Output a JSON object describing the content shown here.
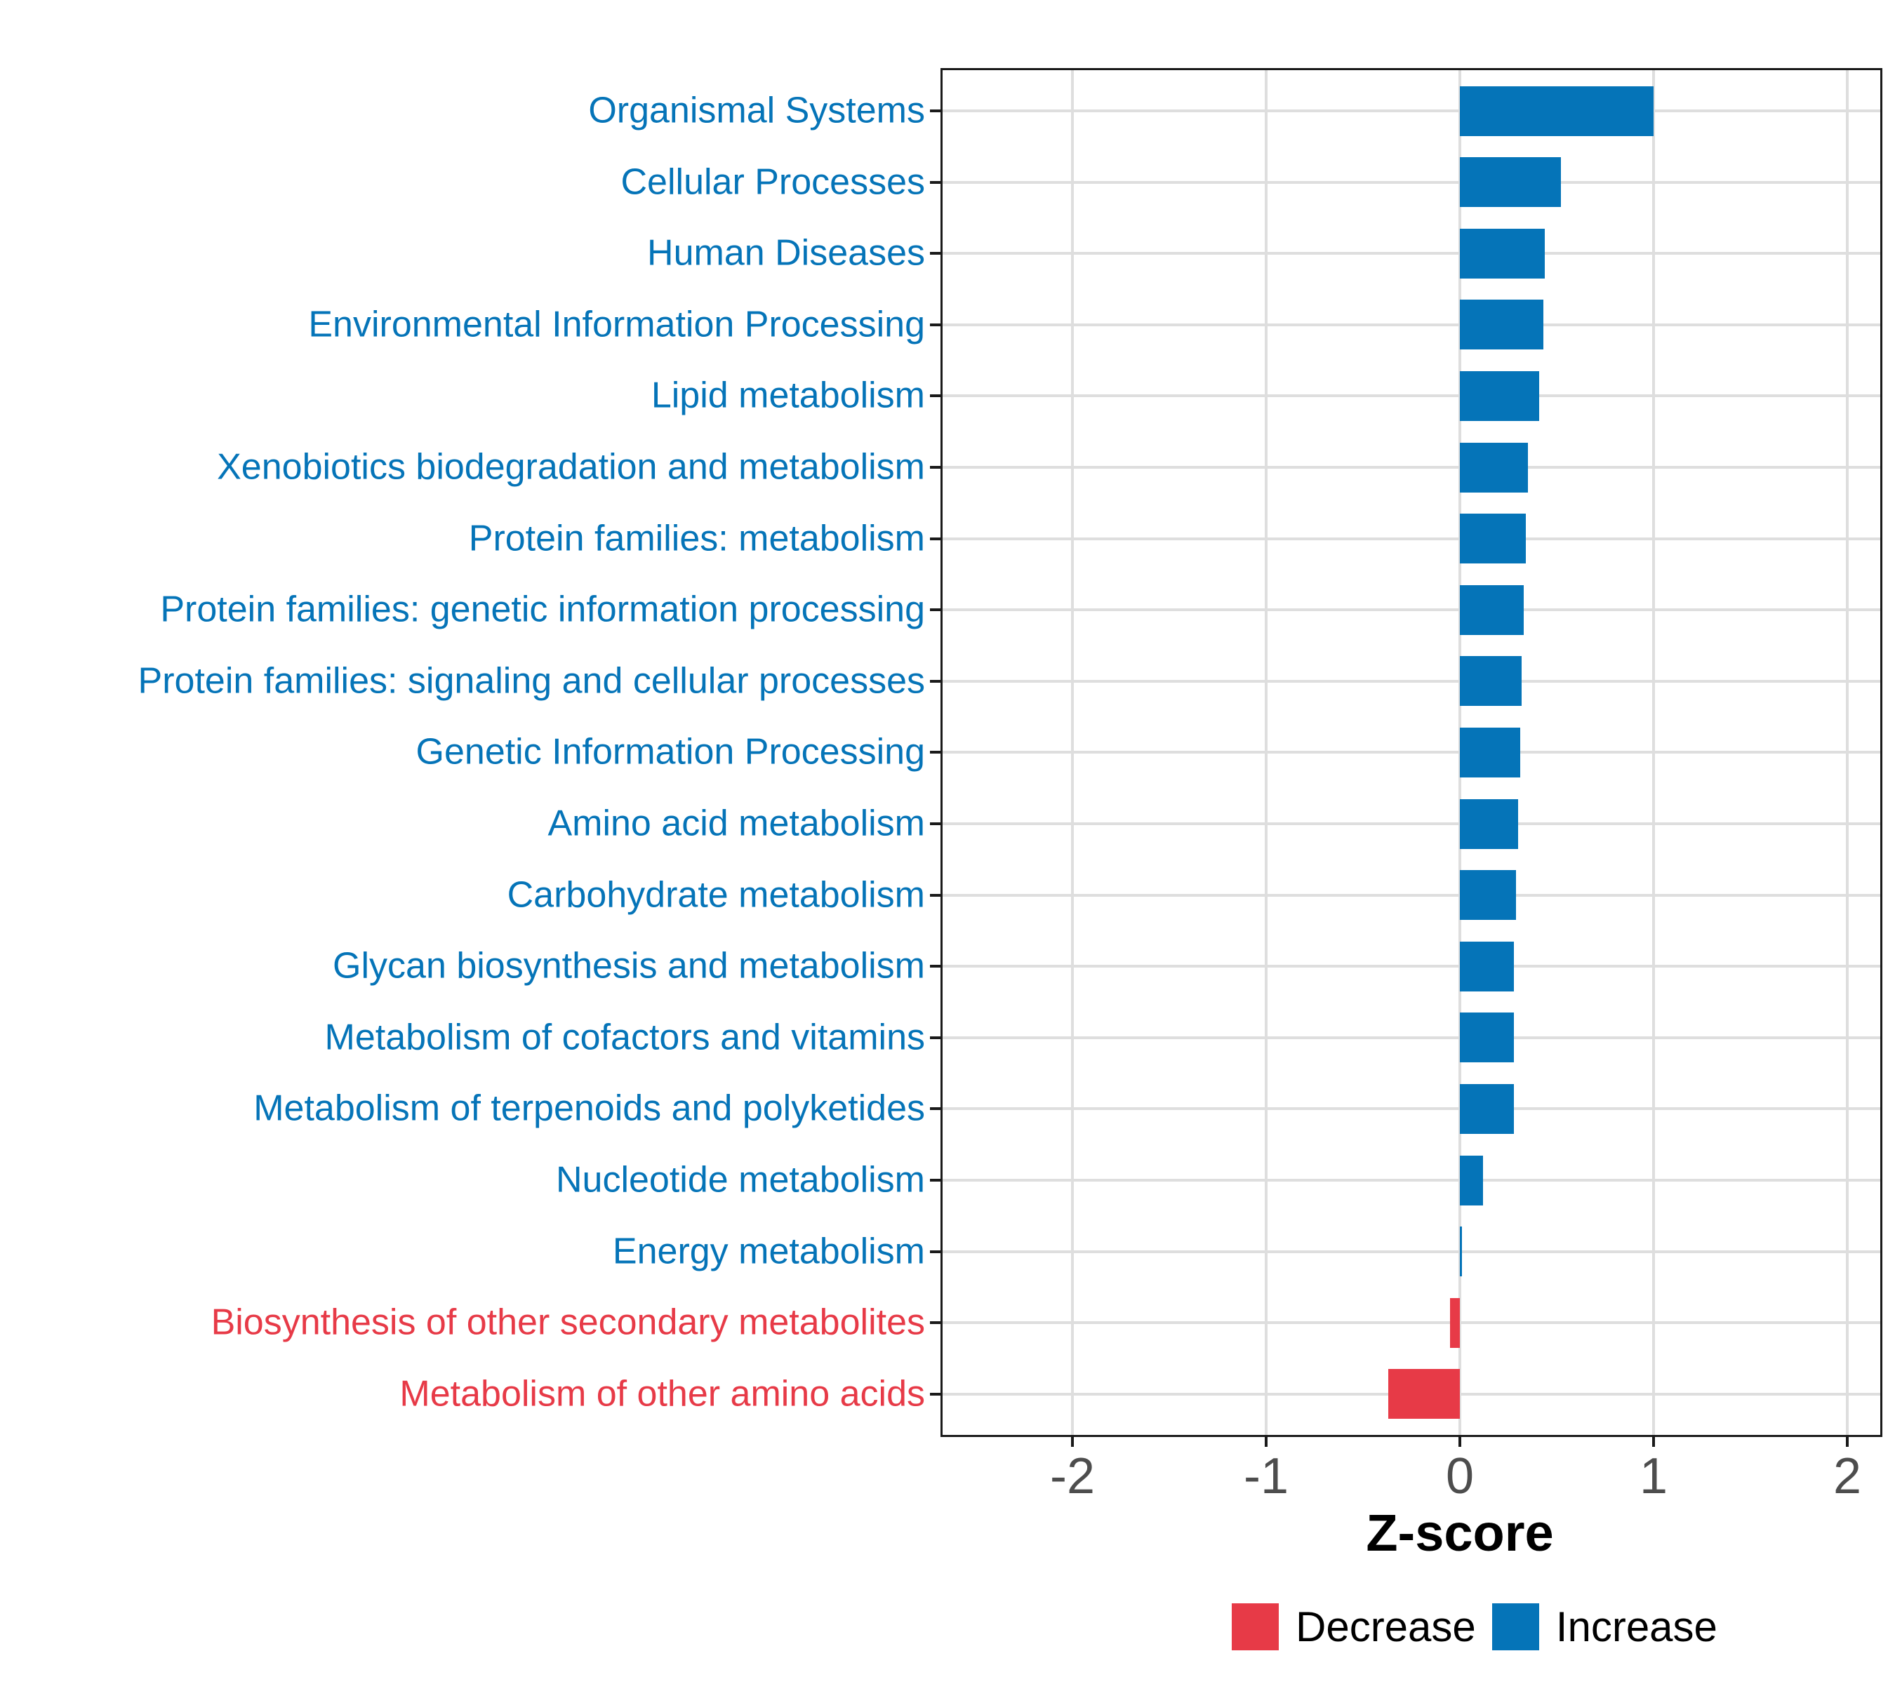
{
  "chart_data": {
    "type": "bar",
    "orientation": "horizontal",
    "title": "",
    "xlabel": "Z-score",
    "ylabel": "",
    "xlim": [
      -2.7,
      2.2
    ],
    "x_ticks": [
      -2,
      -1,
      0,
      1,
      2
    ],
    "x_tick_labels": [
      "-2",
      "-1",
      "0",
      "1",
      "2"
    ],
    "grid": true,
    "legend_position": "bottom",
    "categories": [
      "Organismal Systems",
      "Cellular Processes",
      "Human Diseases",
      "Environmental Information Processing",
      "Lipid metabolism",
      "Xenobiotics biodegradation and metabolism",
      "Protein families: metabolism",
      "Protein families: genetic information processing",
      "Protein families: signaling and cellular processes",
      "Genetic Information Processing",
      "Amino acid metabolism",
      "Carbohydrate metabolism",
      "Glycan biosynthesis and metabolism",
      "Metabolism of cofactors and vitamins",
      "Metabolism of terpenoids and polyketides",
      "Nucleotide metabolism",
      "Energy metabolism",
      "Biosynthesis of other secondary metabolites",
      "Metabolism of other amino acids"
    ],
    "values": [
      1.0,
      0.52,
      0.44,
      0.43,
      0.41,
      0.35,
      0.34,
      0.33,
      0.32,
      0.31,
      0.3,
      0.29,
      0.28,
      0.28,
      0.28,
      0.12,
      0.01,
      -0.05,
      -0.37
    ],
    "directions": [
      "Increase",
      "Increase",
      "Increase",
      "Increase",
      "Increase",
      "Increase",
      "Increase",
      "Increase",
      "Increase",
      "Increase",
      "Increase",
      "Increase",
      "Increase",
      "Increase",
      "Increase",
      "Increase",
      "Increase",
      "Decrease",
      "Decrease"
    ]
  },
  "axis": {
    "title": "Z-score"
  },
  "legend": {
    "decrease_label": "Decrease",
    "increase_label": "Increase"
  },
  "colors": {
    "increase": "#0574b8",
    "decrease": "#e73a47",
    "grid": "#dedede",
    "tick_text": "#4d4d4d",
    "border": "#1a1a1a"
  }
}
